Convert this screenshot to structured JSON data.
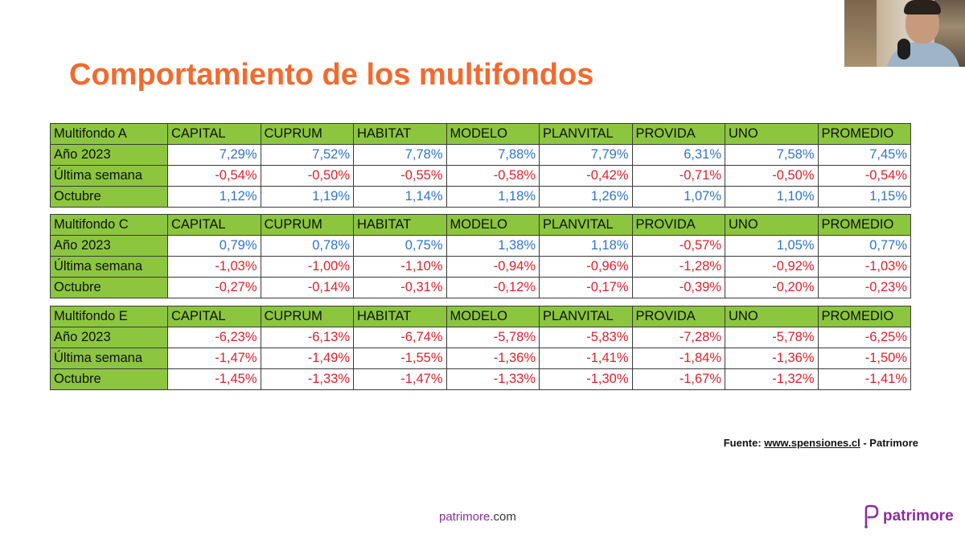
{
  "title": "Comportamiento de los multifondos",
  "columns": [
    "CAPITAL",
    "CUPRUM",
    "HABITAT",
    "MODELO",
    "PLANVITAL",
    "PROVIDA",
    "UNO",
    "PROMEDIO"
  ],
  "tables": [
    {
      "name": "Multifondo A",
      "rows": [
        {
          "label": "Año 2023",
          "values": [
            "7,29%",
            "7,52%",
            "7,78%",
            "7,88%",
            "7,79%",
            "6,31%",
            "7,58%",
            "7,45%"
          ]
        },
        {
          "label": "Última semana",
          "values": [
            "-0,54%",
            "-0,50%",
            "-0,55%",
            "-0,58%",
            "-0,42%",
            "-0,71%",
            "-0,50%",
            "-0,54%"
          ]
        },
        {
          "label": "Octubre",
          "values": [
            "1,12%",
            "1,19%",
            "1,14%",
            "1,18%",
            "1,26%",
            "1,07%",
            "1,10%",
            "1,15%"
          ]
        }
      ]
    },
    {
      "name": "Multifondo C",
      "rows": [
        {
          "label": "Año 2023",
          "values": [
            "0,79%",
            "0,78%",
            "0,75%",
            "1,38%",
            "1,18%",
            "-0,57%",
            "1,05%",
            "0,77%"
          ]
        },
        {
          "label": "Última semana",
          "values": [
            "-1,03%",
            "-1,00%",
            "-1,10%",
            "-0,94%",
            "-0,96%",
            "-1,28%",
            "-0,92%",
            "-1,03%"
          ]
        },
        {
          "label": "Octubre",
          "values": [
            "-0,27%",
            "-0,14%",
            "-0,31%",
            "-0,12%",
            "-0,17%",
            "-0,39%",
            "-0,20%",
            "-0,23%"
          ]
        }
      ]
    },
    {
      "name": "Multifondo E",
      "rows": [
        {
          "label": "Año 2023",
          "values": [
            "-6,23%",
            "-6,13%",
            "-6,74%",
            "-5,78%",
            "-5,83%",
            "-7,28%",
            "-5,78%",
            "-6,25%"
          ]
        },
        {
          "label": "Última semana",
          "values": [
            "-1,47%",
            "-1,49%",
            "-1,55%",
            "-1,36%",
            "-1,41%",
            "-1,84%",
            "-1,36%",
            "-1,50%"
          ]
        },
        {
          "label": "Octubre",
          "values": [
            "-1,45%",
            "-1,33%",
            "-1,47%",
            "-1,33%",
            "-1,30%",
            "-1,67%",
            "-1,32%",
            "-1,41%"
          ]
        }
      ]
    }
  ],
  "source": {
    "prefix": "Fuente: ",
    "link": "www.spensiones.cl",
    "suffix": " - Patrimore"
  },
  "footer": {
    "url_part1": "patrimore",
    "url_part2": ".com",
    "brand": "patrimore"
  },
  "colors": {
    "title": "#f26a2e",
    "header_green": "#8cc63f",
    "positive": "#2e74c8",
    "negative": "#e0202a",
    "brand": "#8b2f9c"
  },
  "icons": {
    "brand_logo": "patrimore-p-icon",
    "webcam": "presenter-webcam"
  }
}
